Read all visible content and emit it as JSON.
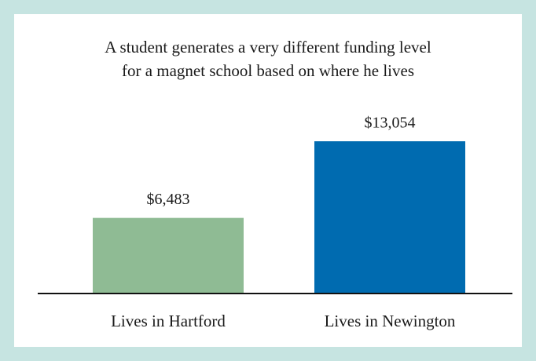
{
  "chart_data": {
    "type": "bar",
    "title": [
      "A student generates a very different funding level",
      "for a magnet school based on where he lives"
    ],
    "categories": [
      "Lives in Hartford",
      "Lives in Newington"
    ],
    "values": [
      6483,
      13054
    ],
    "value_labels": [
      "$6,483",
      "$13,054"
    ],
    "colors": [
      "#8fbb94",
      "#006bb0"
    ]
  }
}
